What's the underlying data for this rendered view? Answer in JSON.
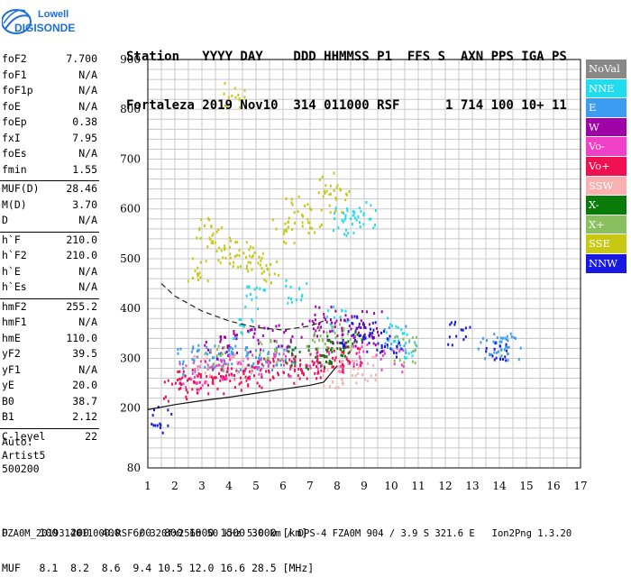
{
  "logo": {
    "brand": "Lowell",
    "product": "DIGISONDE"
  },
  "header": {
    "line1": "Station   YYYY DAY    DDD HHMMSS P1  FFS S  AXN PPS IGA PS",
    "line2": "Fortaleza 2019 Nov10  314 011000 RSF      1 714 100 10+ 11"
  },
  "params": {
    "group1": [
      {
        "label": "foF2",
        "value": "7.700"
      },
      {
        "label": "foF1",
        "value": "N/A"
      },
      {
        "label": "foF1p",
        "value": "N/A"
      },
      {
        "label": "foE",
        "value": "N/A"
      },
      {
        "label": "foEp",
        "value": "0.38"
      },
      {
        "label": "fxI",
        "value": "7.95"
      },
      {
        "label": "foEs",
        "value": "N/A"
      },
      {
        "label": "fmin",
        "value": "1.55"
      }
    ],
    "group2": [
      {
        "label": "MUF(D)",
        "value": "28.46"
      },
      {
        "label": "M(D)",
        "value": "3.70"
      },
      {
        "label": "D",
        "value": "N/A"
      }
    ],
    "group3": [
      {
        "label": "h`F",
        "value": "210.0"
      },
      {
        "label": "h`F2",
        "value": "210.0"
      },
      {
        "label": "h`E",
        "value": "N/A"
      },
      {
        "label": "h`Es",
        "value": "N/A"
      }
    ],
    "group4": [
      {
        "label": "hmF2",
        "value": "255.2"
      },
      {
        "label": "hmF1",
        "value": "N/A"
      },
      {
        "label": "hmE",
        "value": "110.0"
      },
      {
        "label": "yF2",
        "value": "39.5"
      },
      {
        "label": "yF1",
        "value": "N/A"
      },
      {
        "label": "yE",
        "value": "20.0"
      },
      {
        "label": "B0",
        "value": "38.7"
      },
      {
        "label": "B1",
        "value": "2.12"
      }
    ],
    "group5": [
      {
        "label": "C-level",
        "value": "22"
      }
    ]
  },
  "auto": {
    "line1": "Auto:",
    "line2": "Artist5",
    "line3": "500200"
  },
  "legend": [
    {
      "label": "NoVal",
      "color": "#888888"
    },
    {
      "label": "NNE",
      "color": "#22dcee"
    },
    {
      "label": "E",
      "color": "#3c9cf0"
    },
    {
      "label": "W",
      "color": "#a000a8"
    },
    {
      "label": "Vo-",
      "color": "#f040c8"
    },
    {
      "label": "Vo+",
      "color": "#ee1050"
    },
    {
      "label": "SSW",
      "color": "#f8b0b0"
    },
    {
      "label": "X-",
      "color": "#0a7a0a"
    },
    {
      "label": "X+",
      "color": "#88c060"
    },
    {
      "label": "SSE",
      "color": "#c8c814"
    },
    {
      "label": "NNW",
      "color": "#1818e0"
    }
  ],
  "footer": {
    "line1": "D     100  200  400  600  800 1000 1500 3000 [km]",
    "line2": "MUF   8.1  8.2  8.6  9.4 10.5 12.0 16.6 28.5 [MHz]",
    "line3": "FZA0M_2019314011000.RSF / 320fx256h 50 kHz 5.0 km / DPS-4 FZA0M 904 / 3.9 S 321.6 E   Ion2Png 1.3.20"
  },
  "chart_data": {
    "type": "scatter",
    "xlim": [
      1,
      17
    ],
    "ylim": [
      80,
      900
    ],
    "x_ticks": [
      1,
      2,
      3,
      4,
      5,
      6,
      7,
      8,
      9,
      10,
      11,
      12,
      13,
      14,
      15,
      16,
      17
    ],
    "y_ticks": [
      80,
      200,
      300,
      400,
      500,
      600,
      700,
      800,
      900
    ],
    "grid": true,
    "series": [
      {
        "name": "NNE",
        "color": "#22dcee",
        "points": [
          [
            8.2,
            580
          ],
          [
            8.6,
            575
          ],
          [
            9.0,
            590
          ],
          [
            6.5,
            440
          ],
          [
            5.0,
            420
          ],
          [
            10.2,
            360
          ],
          [
            10.5,
            330
          ],
          [
            8.0,
            380
          ],
          [
            4.5,
            355
          ]
        ]
      },
      {
        "name": "E",
        "color": "#3c9cf0",
        "points": [
          [
            3.0,
            310
          ],
          [
            3.5,
            305
          ],
          [
            4.0,
            300
          ],
          [
            4.5,
            300
          ],
          [
            5.0,
            305
          ],
          [
            5.5,
            300
          ],
          [
            6.0,
            305
          ],
          [
            2.5,
            295
          ],
          [
            13.6,
            325
          ],
          [
            14.0,
            325
          ],
          [
            14.4,
            325
          ],
          [
            10.1,
            340
          ]
        ]
      },
      {
        "name": "W",
        "color": "#a000a8",
        "points": [
          [
            4.0,
            330
          ],
          [
            5.0,
            340
          ],
          [
            6.0,
            350
          ],
          [
            7.0,
            360
          ],
          [
            7.5,
            380
          ],
          [
            8.0,
            360
          ],
          [
            8.5,
            370
          ],
          [
            9.0,
            350
          ],
          [
            9.2,
            370
          ],
          [
            3.5,
            320
          ]
        ]
      },
      {
        "name": "Vo-",
        "color": "#f040c8",
        "points": [
          [
            2.5,
            265
          ],
          [
            3.0,
            270
          ],
          [
            3.5,
            275
          ],
          [
            4.0,
            280
          ],
          [
            5.0,
            285
          ],
          [
            6.0,
            290
          ],
          [
            7.0,
            295
          ],
          [
            8.0,
            300
          ],
          [
            9.0,
            310
          ],
          [
            10.0,
            300
          ]
        ]
      },
      {
        "name": "Vo+",
        "color": "#ee1050",
        "points": [
          [
            2.0,
            240
          ],
          [
            2.5,
            250
          ],
          [
            3.0,
            255
          ],
          [
            3.5,
            258
          ],
          [
            4.0,
            262
          ],
          [
            4.5,
            265
          ],
          [
            5.0,
            270
          ],
          [
            5.5,
            275
          ],
          [
            6.0,
            278
          ],
          [
            6.5,
            282
          ],
          [
            7.0,
            288
          ],
          [
            7.5,
            292
          ],
          [
            8.0,
            300
          ],
          [
            8.5,
            310
          ]
        ]
      },
      {
        "name": "SSW",
        "color": "#f8b0b0",
        "points": [
          [
            7.8,
            270
          ],
          [
            8.4,
            275
          ],
          [
            9.0,
            280
          ],
          [
            3.0,
            280
          ],
          [
            4.5,
            285
          ]
        ]
      },
      {
        "name": "X-",
        "color": "#0a7a0a",
        "points": [
          [
            7.5,
            310
          ],
          [
            8.0,
            320
          ],
          [
            8.5,
            330
          ],
          [
            6.5,
            300
          ]
        ]
      },
      {
        "name": "X+",
        "color": "#88c060",
        "points": [
          [
            3.5,
            300
          ],
          [
            5.5,
            320
          ],
          [
            7.2,
            340
          ],
          [
            8.2,
            345
          ],
          [
            10.5,
            320
          ]
        ]
      },
      {
        "name": "SSE",
        "color": "#c8c814",
        "points": [
          [
            3.2,
            560
          ],
          [
            3.6,
            540
          ],
          [
            4.0,
            520
          ],
          [
            4.5,
            510
          ],
          [
            5.0,
            500
          ],
          [
            5.5,
            480
          ],
          [
            6.0,
            560
          ],
          [
            6.5,
            600
          ],
          [
            7.0,
            580
          ],
          [
            7.6,
            650
          ],
          [
            8.0,
            620
          ],
          [
            2.8,
            480
          ],
          [
            4.2,
            830
          ]
        ]
      },
      {
        "name": "NNW",
        "color": "#1818e0",
        "points": [
          [
            8.5,
            350
          ],
          [
            9.0,
            360
          ],
          [
            9.2,
            340
          ],
          [
            10.0,
            330
          ],
          [
            12.5,
            350
          ],
          [
            13.9,
            320
          ],
          [
            1.5,
            180
          ]
        ]
      }
    ],
    "profile": [
      [
        1.5,
        450
      ],
      [
        2.0,
        425
      ],
      [
        3.0,
        395
      ],
      [
        4.0,
        375
      ],
      [
        5.0,
        362
      ],
      [
        6.0,
        357
      ],
      [
        7.0,
        365
      ],
      [
        7.5,
        375
      ]
    ],
    "trace_fit": [
      [
        1.0,
        197
      ],
      [
        2.0,
        207
      ],
      [
        3.0,
        215
      ],
      [
        4.0,
        222
      ],
      [
        5.0,
        230
      ],
      [
        6.0,
        238
      ],
      [
        7.0,
        246
      ],
      [
        7.5,
        252
      ],
      [
        8.0,
        285
      ]
    ]
  }
}
